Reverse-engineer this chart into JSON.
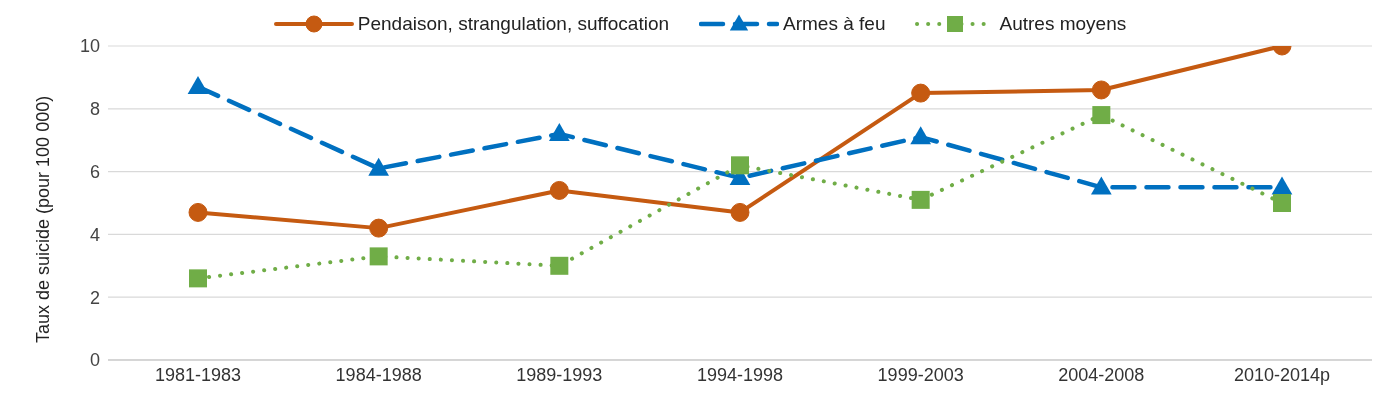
{
  "chart_data": {
    "type": "line",
    "ylabel": "Taux de suicide (pour 100 000)",
    "categories": [
      "1981-1983",
      "1984-1988",
      "1989-1993",
      "1994-1998",
      "1999-2003",
      "2004-2008",
      "2010-2014p"
    ],
    "series": [
      {
        "name": "Pendaison, strangulation, suffocation",
        "color": "#c55a11",
        "line_style": "solid",
        "marker": "circle",
        "values": [
          4.7,
          4.2,
          5.4,
          4.7,
          8.5,
          8.6,
          10
        ]
      },
      {
        "name": "Armes à feu",
        "color": "#0070c0",
        "line_style": "dashed",
        "marker": "triangle",
        "values": [
          8.7,
          6.1,
          7.2,
          5.8,
          7.1,
          5.5,
          5.5
        ]
      },
      {
        "name": "Autres moyens",
        "color": "#70ad47",
        "line_style": "dotted",
        "marker": "square",
        "values": [
          2.6,
          3.3,
          3.0,
          6.2,
          5.1,
          7.8,
          5.0
        ]
      }
    ],
    "ylim": [
      0,
      10
    ],
    "yticks": [
      0,
      2,
      4,
      6,
      8,
      10
    ],
    "grid": "y",
    "legend": "top"
  }
}
